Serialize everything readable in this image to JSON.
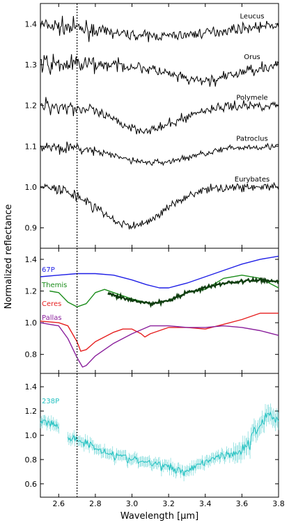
{
  "chart_data": {
    "type": "line",
    "xlabel": "Wavelength [μm]",
    "ylabel": "Normalized reflectance",
    "xlim": [
      2.5,
      3.8
    ],
    "x_ticks": [
      "2.6",
      "2.8",
      "3.0",
      "3.2",
      "3.4",
      "3.6",
      "3.8"
    ],
    "reference_line_x": 2.7,
    "panels": [
      {
        "ylim": [
          0.85,
          1.45
        ],
        "y_ticks": [
          "0.9",
          "1.0",
          "1.1",
          "1.2",
          "1.3",
          "1.4"
        ],
        "series": [
          {
            "name": "Leucus",
            "color": "#000000",
            "offset": 1.4,
            "depth": 0.03,
            "center": 3.15,
            "width": 0.45,
            "noise": 0.012,
            "x_range": [
              2.5,
              3.8
            ]
          },
          {
            "name": "Orus",
            "color": "#000000",
            "offset": 1.3,
            "depth": 0.04,
            "center": 3.38,
            "width": 0.25,
            "noise": 0.014,
            "x_range": [
              2.5,
              3.8
            ]
          },
          {
            "name": "Polymele",
            "color": "#000000",
            "offset": 1.2,
            "depth": 0.06,
            "center": 3.08,
            "width": 0.25,
            "noise": 0.012,
            "x_range": [
              2.5,
              3.8
            ]
          },
          {
            "name": "Patroclus",
            "color": "#000000",
            "offset": 1.1,
            "depth": 0.04,
            "center": 3.12,
            "width": 0.3,
            "noise": 0.008,
            "x_range": [
              2.5,
              3.8
            ]
          },
          {
            "name": "Eurybates",
            "color": "#000000",
            "offset": 1.0,
            "depth": 0.095,
            "center": 3.0,
            "width": 0.25,
            "noise": 0.01,
            "x_range": [
              2.5,
              3.8
            ]
          }
        ]
      },
      {
        "ylim": [
          0.68,
          1.47
        ],
        "y_ticks": [
          "0.8",
          "1.0",
          "1.2",
          "1.4"
        ],
        "series": [
          {
            "name": "67P",
            "color": "#1f1fe6",
            "points": [
              [
                2.5,
                1.29
              ],
              [
                2.6,
                1.3
              ],
              [
                2.7,
                1.31
              ],
              [
                2.8,
                1.31
              ],
              [
                2.9,
                1.3
              ],
              [
                3.0,
                1.27
              ],
              [
                3.08,
                1.24
              ],
              [
                3.15,
                1.22
              ],
              [
                3.2,
                1.22
              ],
              [
                3.3,
                1.25
              ],
              [
                3.4,
                1.29
              ],
              [
                3.5,
                1.33
              ],
              [
                3.6,
                1.37
              ],
              [
                3.7,
                1.4
              ],
              [
                3.8,
                1.42
              ]
            ]
          },
          {
            "name": "Themis",
            "color": "#1a8c1a",
            "points": [
              [
                2.55,
                1.2
              ],
              [
                2.6,
                1.19
              ],
              [
                2.65,
                1.13
              ],
              [
                2.7,
                1.1
              ],
              [
                2.75,
                1.12
              ],
              [
                2.8,
                1.19
              ],
              [
                2.85,
                1.21
              ],
              [
                2.9,
                1.19
              ],
              [
                3.0,
                1.15
              ],
              [
                3.1,
                1.12
              ],
              [
                3.2,
                1.14
              ],
              [
                3.3,
                1.19
              ],
              [
                3.4,
                1.21
              ],
              [
                3.5,
                1.28
              ],
              [
                3.6,
                1.3
              ],
              [
                3.7,
                1.28
              ],
              [
                3.8,
                1.22
              ]
            ]
          },
          {
            "name": "Ceres",
            "color": "#e61f1f",
            "points": [
              [
                2.5,
                1.01
              ],
              [
                2.6,
                1.0
              ],
              [
                2.65,
                0.98
              ],
              [
                2.7,
                0.88
              ],
              [
                2.72,
                0.82
              ],
              [
                2.75,
                0.83
              ],
              [
                2.8,
                0.88
              ],
              [
                2.9,
                0.94
              ],
              [
                2.95,
                0.96
              ],
              [
                3.0,
                0.96
              ],
              [
                3.05,
                0.93
              ],
              [
                3.07,
                0.91
              ],
              [
                3.1,
                0.93
              ],
              [
                3.2,
                0.97
              ],
              [
                3.3,
                0.97
              ],
              [
                3.4,
                0.96
              ],
              [
                3.5,
                0.99
              ],
              [
                3.6,
                1.02
              ],
              [
                3.7,
                1.06
              ],
              [
                3.8,
                1.06
              ]
            ]
          },
          {
            "name": "Pallas",
            "color": "#8a1f9c",
            "points": [
              [
                2.5,
                1.0
              ],
              [
                2.55,
                0.99
              ],
              [
                2.6,
                0.98
              ],
              [
                2.65,
                0.9
              ],
              [
                2.7,
                0.78
              ],
              [
                2.73,
                0.72
              ],
              [
                2.75,
                0.73
              ],
              [
                2.8,
                0.79
              ],
              [
                2.9,
                0.87
              ],
              [
                3.0,
                0.93
              ],
              [
                3.1,
                0.98
              ],
              [
                3.2,
                0.98
              ],
              [
                3.3,
                0.97
              ],
              [
                3.4,
                0.97
              ],
              [
                3.5,
                0.98
              ],
              [
                3.6,
                0.97
              ],
              [
                3.7,
                0.95
              ],
              [
                3.8,
                0.92
              ]
            ]
          },
          {
            "name": "",
            "color": "#0f3d0f",
            "points": [
              [
                2.87,
                1.18
              ],
              [
                2.9,
                1.17
              ],
              [
                3.0,
                1.14
              ],
              [
                3.1,
                1.12
              ],
              [
                3.2,
                1.14
              ],
              [
                3.3,
                1.19
              ],
              [
                3.4,
                1.22
              ],
              [
                3.5,
                1.25
              ],
              [
                3.6,
                1.26
              ],
              [
                3.7,
                1.27
              ],
              [
                3.8,
                1.26
              ]
            ]
          }
        ]
      },
      {
        "ylim": [
          0.49,
          1.51
        ],
        "y_ticks": [
          "0.6",
          "0.8",
          "1.0",
          "1.2",
          "1.4"
        ],
        "series": [
          {
            "name": "238P",
            "color": "#20c0c0",
            "segments": [
              [
                [
                  2.5,
                  1.12
                ],
                [
                  2.55,
                  1.1
                ],
                [
                  2.6,
                  1.07
                ]
              ],
              [
                [
                  2.65,
                  0.98
                ],
                [
                  2.7,
                  0.97
                ],
                [
                  2.8,
                  0.9
                ],
                [
                  2.9,
                  0.84
                ],
                [
                  3.0,
                  0.8
                ],
                [
                  3.1,
                  0.77
                ],
                [
                  3.2,
                  0.74
                ],
                [
                  3.28,
                  0.7
                ],
                [
                  3.35,
                  0.75
                ],
                [
                  3.45,
                  0.82
                ],
                [
                  3.55,
                  0.85
                ],
                [
                  3.6,
                  0.88
                ],
                [
                  3.65,
                  0.95
                ],
                [
                  3.7,
                  1.1
                ],
                [
                  3.75,
                  1.18
                ],
                [
                  3.8,
                  1.12
                ]
              ]
            ]
          }
        ]
      }
    ]
  }
}
